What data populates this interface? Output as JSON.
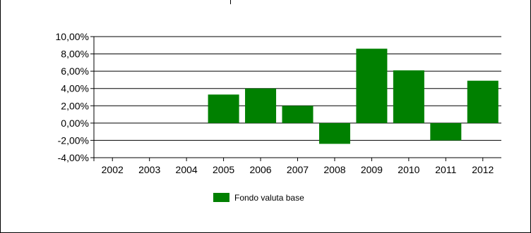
{
  "chart_data": {
    "type": "bar",
    "categories": [
      "2002",
      "2003",
      "2004",
      "2005",
      "2006",
      "2007",
      "2008",
      "2009",
      "2010",
      "2011",
      "2012"
    ],
    "series": [
      {
        "name": "Fondo valuta base",
        "values": [
          null,
          null,
          null,
          3.3,
          4.0,
          2.0,
          -2.4,
          8.6,
          6.1,
          -2.0,
          4.9
        ]
      }
    ],
    "y_ticks": [
      "10,00%",
      "8,00%",
      "6,00%",
      "4,00%",
      "2,00%",
      "0,00%",
      "-2,00%",
      "-4,00%"
    ],
    "y_tick_values": [
      10,
      8,
      6,
      4,
      2,
      0,
      -2,
      -4
    ],
    "ylim": [
      -4,
      10
    ],
    "grid": true,
    "legend_position": "bottom-center",
    "bar_color": "#008000"
  }
}
